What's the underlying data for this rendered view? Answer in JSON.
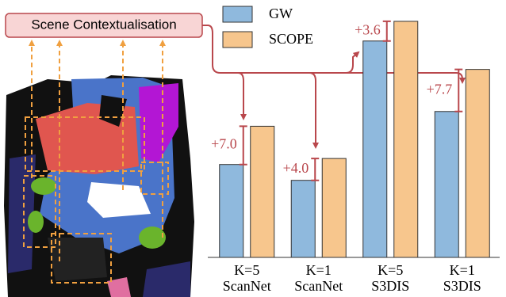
{
  "chart_data": {
    "type": "bar",
    "callout": "Scene Contextualisation",
    "categories": [
      [
        "K=5",
        "ScanNet"
      ],
      [
        "K=1",
        "ScanNet"
      ],
      [
        "K=5",
        "S3DIS"
      ],
      [
        "K=1",
        "S3DIS"
      ]
    ],
    "series": [
      {
        "name": "GW",
        "color": "#8fb9dd",
        "values": [
          17.0,
          14.1,
          39.6,
          26.7
        ]
      },
      {
        "name": "SCOPE",
        "color": "#f7c68d",
        "values": [
          24.0,
          18.1,
          43.2,
          34.4
        ]
      }
    ],
    "annotations": [
      "+7.0",
      "+4.0",
      "+3.6",
      "+7.7"
    ],
    "annotation_color": "#b9474c",
    "ylim": [
      0,
      45
    ],
    "legend": "upper-left"
  }
}
